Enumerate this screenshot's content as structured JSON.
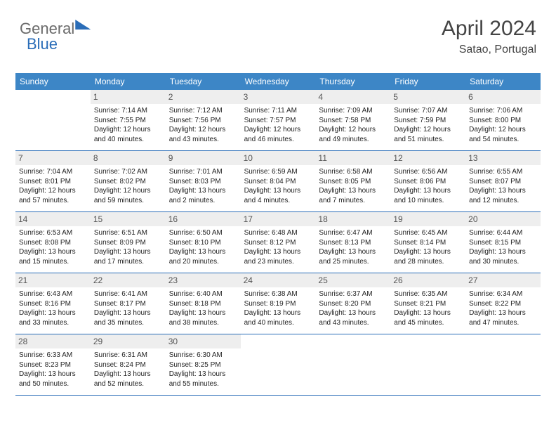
{
  "brand": {
    "part1": "General",
    "part2": "Blue"
  },
  "title": "April 2024",
  "location": "Satao, Portugal",
  "colors": {
    "header_bg": "#3d86c6",
    "rule": "#2a6db8",
    "daynum_bg": "#eeeeee",
    "text": "#222222"
  },
  "font": {
    "family": "Arial",
    "title_size_pt": 22,
    "body_size_pt": 7.5
  },
  "dow": [
    "Sunday",
    "Monday",
    "Tuesday",
    "Wednesday",
    "Thursday",
    "Friday",
    "Saturday"
  ],
  "first_weekday_index": 1,
  "days_in_month": 30,
  "days": {
    "1": {
      "sunrise": "7:14 AM",
      "sunset": "7:55 PM",
      "daylight": "12 hours and 40 minutes."
    },
    "2": {
      "sunrise": "7:12 AM",
      "sunset": "7:56 PM",
      "daylight": "12 hours and 43 minutes."
    },
    "3": {
      "sunrise": "7:11 AM",
      "sunset": "7:57 PM",
      "daylight": "12 hours and 46 minutes."
    },
    "4": {
      "sunrise": "7:09 AM",
      "sunset": "7:58 PM",
      "daylight": "12 hours and 49 minutes."
    },
    "5": {
      "sunrise": "7:07 AM",
      "sunset": "7:59 PM",
      "daylight": "12 hours and 51 minutes."
    },
    "6": {
      "sunrise": "7:06 AM",
      "sunset": "8:00 PM",
      "daylight": "12 hours and 54 minutes."
    },
    "7": {
      "sunrise": "7:04 AM",
      "sunset": "8:01 PM",
      "daylight": "12 hours and 57 minutes."
    },
    "8": {
      "sunrise": "7:02 AM",
      "sunset": "8:02 PM",
      "daylight": "12 hours and 59 minutes."
    },
    "9": {
      "sunrise": "7:01 AM",
      "sunset": "8:03 PM",
      "daylight": "13 hours and 2 minutes."
    },
    "10": {
      "sunrise": "6:59 AM",
      "sunset": "8:04 PM",
      "daylight": "13 hours and 4 minutes."
    },
    "11": {
      "sunrise": "6:58 AM",
      "sunset": "8:05 PM",
      "daylight": "13 hours and 7 minutes."
    },
    "12": {
      "sunrise": "6:56 AM",
      "sunset": "8:06 PM",
      "daylight": "13 hours and 10 minutes."
    },
    "13": {
      "sunrise": "6:55 AM",
      "sunset": "8:07 PM",
      "daylight": "13 hours and 12 minutes."
    },
    "14": {
      "sunrise": "6:53 AM",
      "sunset": "8:08 PM",
      "daylight": "13 hours and 15 minutes."
    },
    "15": {
      "sunrise": "6:51 AM",
      "sunset": "8:09 PM",
      "daylight": "13 hours and 17 minutes."
    },
    "16": {
      "sunrise": "6:50 AM",
      "sunset": "8:10 PM",
      "daylight": "13 hours and 20 minutes."
    },
    "17": {
      "sunrise": "6:48 AM",
      "sunset": "8:12 PM",
      "daylight": "13 hours and 23 minutes."
    },
    "18": {
      "sunrise": "6:47 AM",
      "sunset": "8:13 PM",
      "daylight": "13 hours and 25 minutes."
    },
    "19": {
      "sunrise": "6:45 AM",
      "sunset": "8:14 PM",
      "daylight": "13 hours and 28 minutes."
    },
    "20": {
      "sunrise": "6:44 AM",
      "sunset": "8:15 PM",
      "daylight": "13 hours and 30 minutes."
    },
    "21": {
      "sunrise": "6:43 AM",
      "sunset": "8:16 PM",
      "daylight": "13 hours and 33 minutes."
    },
    "22": {
      "sunrise": "6:41 AM",
      "sunset": "8:17 PM",
      "daylight": "13 hours and 35 minutes."
    },
    "23": {
      "sunrise": "6:40 AM",
      "sunset": "8:18 PM",
      "daylight": "13 hours and 38 minutes."
    },
    "24": {
      "sunrise": "6:38 AM",
      "sunset": "8:19 PM",
      "daylight": "13 hours and 40 minutes."
    },
    "25": {
      "sunrise": "6:37 AM",
      "sunset": "8:20 PM",
      "daylight": "13 hours and 43 minutes."
    },
    "26": {
      "sunrise": "6:35 AM",
      "sunset": "8:21 PM",
      "daylight": "13 hours and 45 minutes."
    },
    "27": {
      "sunrise": "6:34 AM",
      "sunset": "8:22 PM",
      "daylight": "13 hours and 47 minutes."
    },
    "28": {
      "sunrise": "6:33 AM",
      "sunset": "8:23 PM",
      "daylight": "13 hours and 50 minutes."
    },
    "29": {
      "sunrise": "6:31 AM",
      "sunset": "8:24 PM",
      "daylight": "13 hours and 52 minutes."
    },
    "30": {
      "sunrise": "6:30 AM",
      "sunset": "8:25 PM",
      "daylight": "13 hours and 55 minutes."
    }
  },
  "labels": {
    "sunrise": "Sunrise:",
    "sunset": "Sunset:",
    "daylight": "Daylight:"
  }
}
